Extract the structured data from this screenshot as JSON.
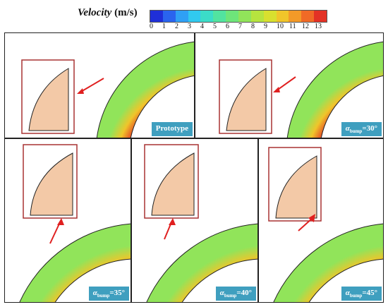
{
  "legend": {
    "title_word": "Velocity",
    "title_unit": " (m/s)",
    "ticks": [
      "0",
      "1",
      "2",
      "3",
      "4",
      "5",
      "6",
      "7",
      "8",
      "9",
      "10",
      "11",
      "12",
      "13"
    ],
    "colors": [
      "#1f2fd8",
      "#2a64ee",
      "#2fa0f5",
      "#31c9ef",
      "#3bdcc8",
      "#52e3a0",
      "#6ee57a",
      "#91e45a",
      "#b6e43f",
      "#d8e02f",
      "#f0c52a",
      "#f39a28",
      "#f06a26",
      "#e33225"
    ]
  },
  "panels": [
    {
      "label": "Prototype",
      "sub": "",
      "suffix": ""
    },
    {
      "label": "α",
      "sub": "bump",
      "suffix": "=30°"
    },
    {
      "label": "α",
      "sub": "bump",
      "suffix": "=35°"
    },
    {
      "label": "α",
      "sub": "bump",
      "suffix": "=40°"
    },
    {
      "label": "α",
      "sub": "bump",
      "suffix": "=45°"
    }
  ]
}
